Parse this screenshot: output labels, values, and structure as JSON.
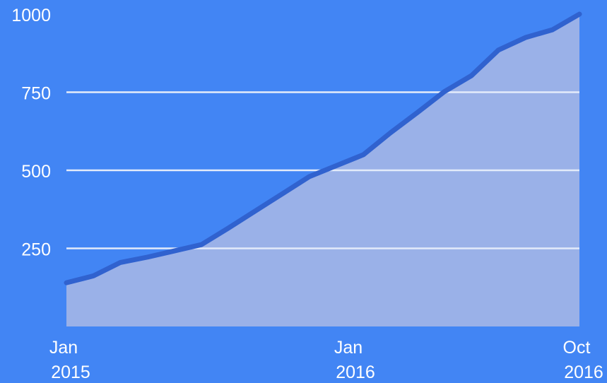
{
  "colors": {
    "background": "#4285f4",
    "area_fill": "#9ab1e8",
    "line": "#3062cf",
    "grid": "#e3ebfa",
    "text": "#ffffff"
  },
  "chart_data": {
    "type": "area",
    "title": "",
    "xlabel": "",
    "ylabel": "",
    "x": [
      "2015-01",
      "2015-02",
      "2015-03",
      "2015-04",
      "2015-05",
      "2015-06",
      "2015-07",
      "2015-08",
      "2015-09",
      "2015-10",
      "2015-11",
      "2015-12",
      "2016-01",
      "2016-02",
      "2016-03",
      "2016-04",
      "2016-05",
      "2016-06",
      "2016-07",
      "2016-08",
      "2016-09",
      "2016-10"
    ],
    "series": [
      {
        "values": [
          140,
          162,
          205,
          222,
          242,
          262,
          315,
          370,
          425,
          480,
          515,
          550,
          620,
          685,
          752,
          803,
          885,
          925,
          950,
          1000,
          null,
          null
        ]
      }
    ],
    "ylim": [
      0,
      1000
    ],
    "y_ticks": [
      250,
      500,
      750,
      1000
    ],
    "y_tick_labels": [
      "250",
      "500",
      "750",
      "1000"
    ],
    "x_tick_labels": [
      {
        "month": "Jan",
        "year": "2015",
        "at": "2015-01"
      },
      {
        "month": "Jan",
        "year": "2016",
        "at": "2016-01"
      },
      {
        "month": "Oct",
        "year": "2016",
        "at": "2016-10"
      }
    ],
    "grid": true,
    "legend": "none"
  }
}
